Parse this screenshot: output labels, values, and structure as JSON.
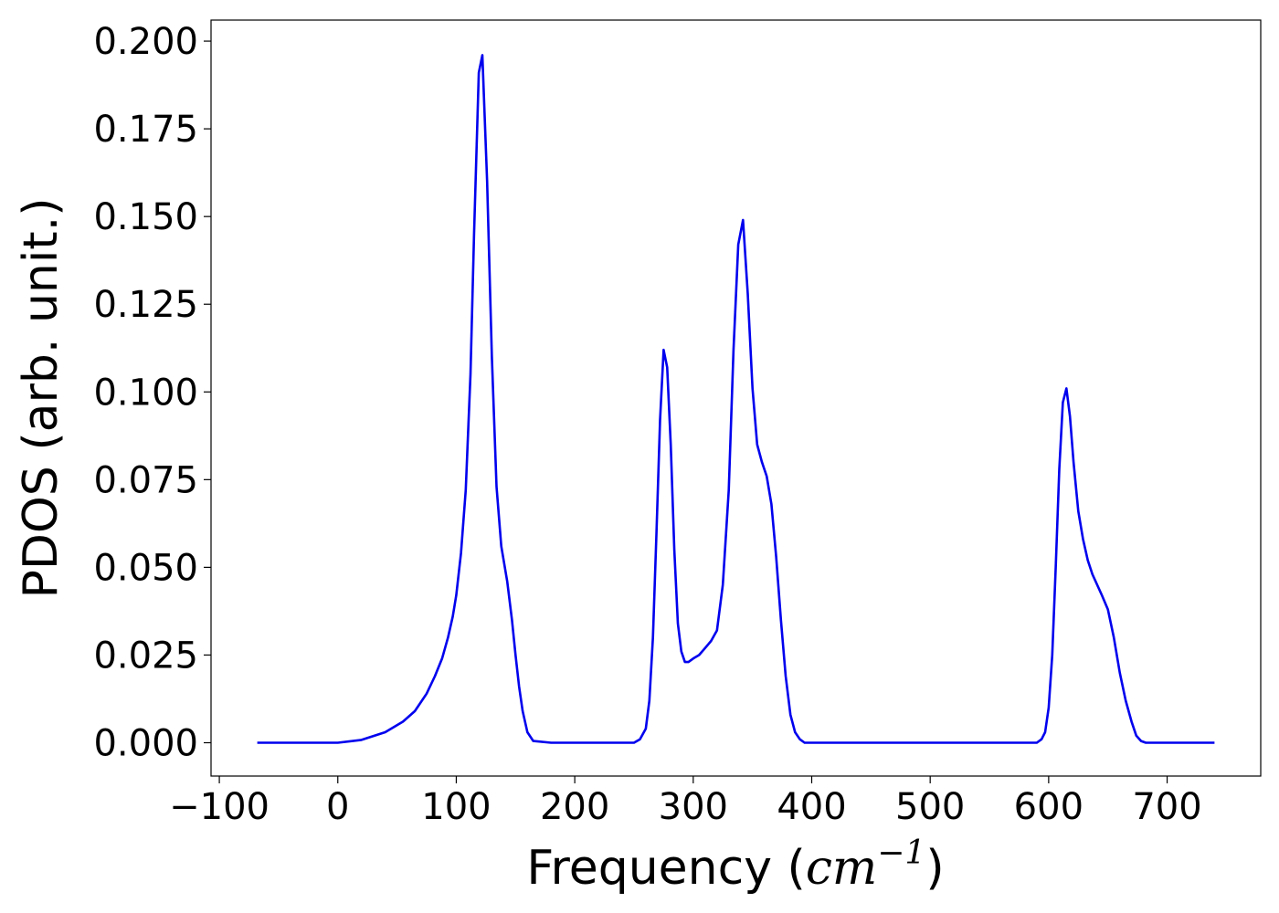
{
  "chart_data": {
    "type": "line",
    "xlabel_prefix": "Frequency (",
    "xlabel_unit": "cm",
    "xlabel_exponent": "−1",
    "xlabel_suffix": ")",
    "ylabel": "PDOS (arb. unit.)",
    "xlim": [
      -107,
      779
    ],
    "ylim": [
      -0.0095,
      0.206
    ],
    "xticks": [
      -100,
      0,
      100,
      200,
      300,
      400,
      500,
      600,
      700
    ],
    "xtick_labels": [
      "−100",
      "0",
      "100",
      "200",
      "300",
      "400",
      "500",
      "600",
      "700"
    ],
    "yticks": [
      0.0,
      0.025,
      0.05,
      0.075,
      0.1,
      0.125,
      0.15,
      0.175,
      0.2
    ],
    "ytick_labels": [
      "0.000",
      "0.025",
      "0.050",
      "0.075",
      "0.100",
      "0.125",
      "0.150",
      "0.175",
      "0.200"
    ],
    "grid": false,
    "series": [
      {
        "color": "#0000ee",
        "x": [
          -68,
          -40,
          0,
          20,
          40,
          55,
          65,
          75,
          82,
          88,
          93,
          97,
          100,
          104,
          108,
          112,
          115,
          119,
          122,
          126,
          130,
          134,
          138,
          143,
          147,
          150,
          153,
          156,
          160,
          165,
          180,
          200,
          230,
          250,
          255,
          260,
          263,
          266,
          269,
          272,
          275,
          278,
          281,
          284,
          287,
          290,
          293,
          296,
          300,
          305,
          310,
          315,
          320,
          325,
          330,
          334,
          338,
          342,
          346,
          350,
          354,
          358,
          362,
          366,
          370,
          374,
          378,
          382,
          386,
          390,
          394,
          398,
          403,
          420,
          500,
          560,
          590,
          594,
          597,
          600,
          603,
          606,
          609,
          612,
          615,
          618,
          621,
          625,
          629,
          633,
          637,
          641,
          645,
          650,
          655,
          660,
          665,
          670,
          674,
          678,
          682,
          688,
          700,
          740
        ],
        "y": [
          0,
          0,
          0,
          0.0008,
          0.003,
          0.006,
          0.009,
          0.014,
          0.019,
          0.024,
          0.03,
          0.036,
          0.042,
          0.054,
          0.072,
          0.105,
          0.145,
          0.191,
          0.196,
          0.16,
          0.11,
          0.073,
          0.056,
          0.046,
          0.035,
          0.025,
          0.016,
          0.009,
          0.003,
          0.0005,
          0,
          0,
          0,
          0,
          0.001,
          0.004,
          0.012,
          0.03,
          0.06,
          0.092,
          0.112,
          0.107,
          0.085,
          0.055,
          0.034,
          0.026,
          0.023,
          0.023,
          0.024,
          0.025,
          0.027,
          0.029,
          0.032,
          0.045,
          0.072,
          0.112,
          0.142,
          0.149,
          0.128,
          0.101,
          0.085,
          0.08,
          0.076,
          0.068,
          0.053,
          0.035,
          0.019,
          0.008,
          0.003,
          0.001,
          0,
          0,
          0,
          0,
          0,
          0,
          0,
          0.001,
          0.003,
          0.01,
          0.025,
          0.05,
          0.078,
          0.097,
          0.101,
          0.093,
          0.08,
          0.066,
          0.058,
          0.052,
          0.048,
          0.045,
          0.042,
          0.038,
          0.03,
          0.02,
          0.012,
          0.006,
          0.002,
          0.0005,
          0,
          0,
          0,
          0
        ]
      }
    ]
  }
}
